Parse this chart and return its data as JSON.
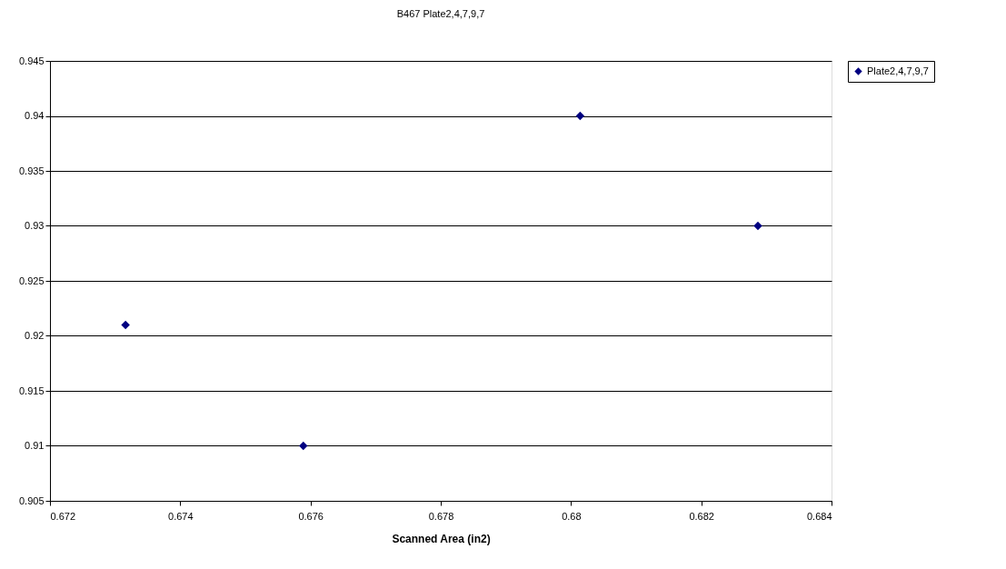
{
  "chart_data": {
    "type": "scatter",
    "title": "B467 Plate2,4,7,9,7",
    "xlabel": "Scanned Area (in2)",
    "x": [
      0.67316,
      0.67589,
      0.68014,
      0.68287
    ],
    "series": [
      {
        "name": "Plate2,4,7,9,7",
        "color": "#000080",
        "values": [
          0.921,
          0.91,
          0.94,
          0.93
        ]
      }
    ],
    "xlim": [
      0.672,
      0.684
    ],
    "xticks": [
      0.672,
      0.674,
      0.676,
      0.678,
      0.68,
      0.682,
      0.684
    ],
    "ylim": [
      0.905,
      0.945
    ],
    "yticks": [
      0.905,
      0.91,
      0.915,
      0.92,
      0.925,
      0.93,
      0.935,
      0.94,
      0.945
    ],
    "grid": "y",
    "legend": "right",
    "marker": "diamond"
  }
}
